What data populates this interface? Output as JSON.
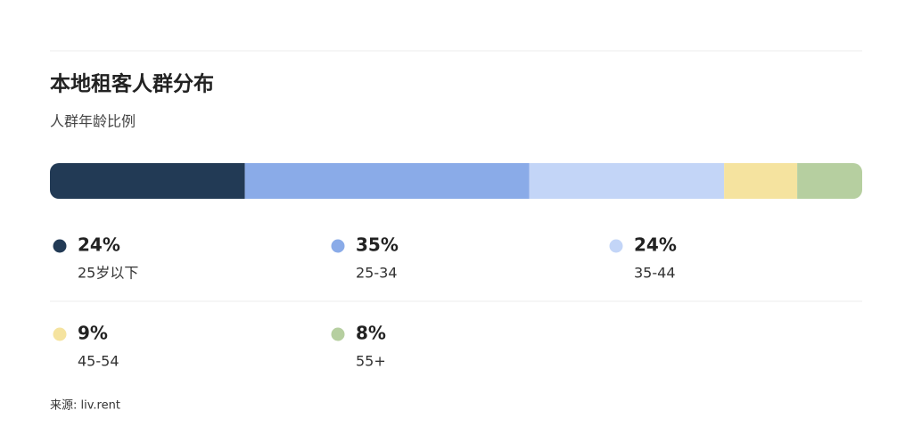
{
  "chart_data": {
    "type": "stacked-bar",
    "title": "本地租客人群分布",
    "subtitle": "人群年龄比例",
    "categories": [
      "25岁以下",
      "25-34",
      "35-44",
      "45-54",
      "55+"
    ],
    "values": [
      24,
      35,
      24,
      9,
      8
    ],
    "value_labels": [
      "24%",
      "35%",
      "24%",
      "9%",
      "8%"
    ],
    "colors": [
      "#223a55",
      "#8aabe8",
      "#c3d5f7",
      "#f5e39f",
      "#b6cfa0"
    ],
    "xlim": [
      0,
      100
    ],
    "source": "来源: liv.rent"
  }
}
